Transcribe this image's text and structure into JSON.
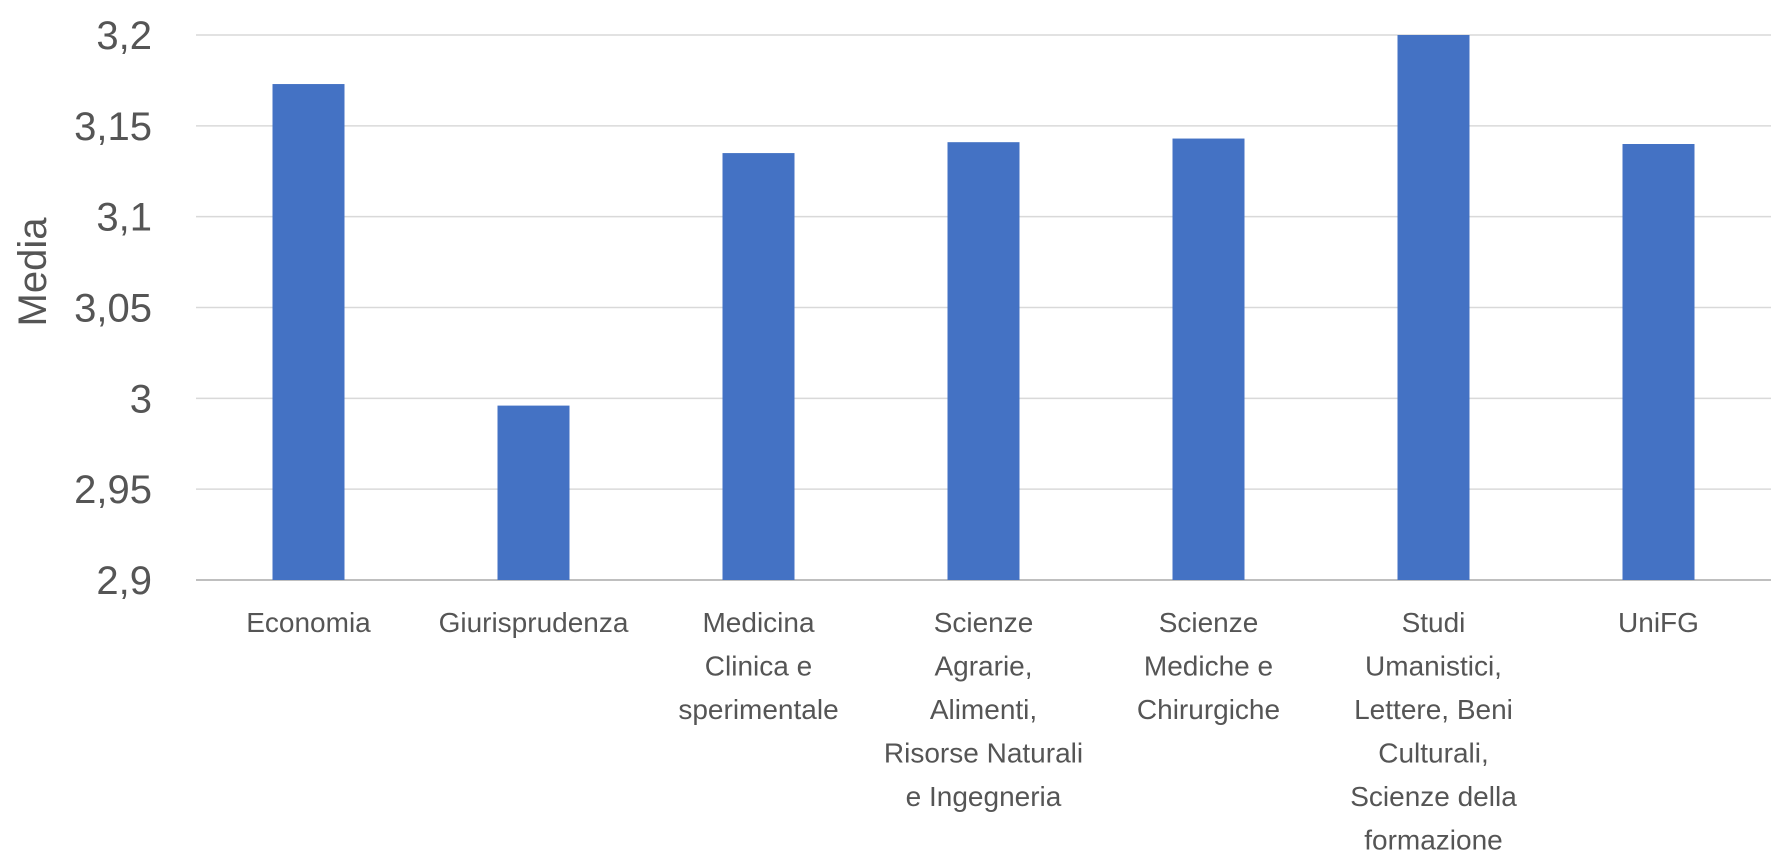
{
  "chart_data": {
    "type": "bar",
    "title": "",
    "xlabel": "",
    "ylabel": "Media",
    "ylim": [
      2.9,
      3.2
    ],
    "yticks": [
      2.9,
      2.95,
      3,
      3.05,
      3.1,
      3.15,
      3.2
    ],
    "ytick_labels": [
      "2,9",
      "2,95",
      "3",
      "3,05",
      "3,1",
      "3,15",
      "3,2"
    ],
    "grid": true,
    "legend": "none",
    "bar_color": "#4472C4",
    "categories": [
      [
        "Economia"
      ],
      [
        "Giurisprudenza"
      ],
      [
        "Medicina",
        "Clinica e",
        "sperimentale"
      ],
      [
        "Scienze",
        "Agrarie,",
        "Alimenti,",
        "Risorse Naturali",
        "e Ingegneria"
      ],
      [
        "Scienze",
        "Mediche e",
        "Chirurgiche"
      ],
      [
        "Studi",
        "Umanistici,",
        "Lettere, Beni",
        "Culturali,",
        "Scienze della",
        "formazione"
      ],
      [
        "UniFG"
      ]
    ],
    "values": [
      3.173,
      2.996,
      3.135,
      3.141,
      3.143,
      3.2,
      3.14
    ]
  }
}
